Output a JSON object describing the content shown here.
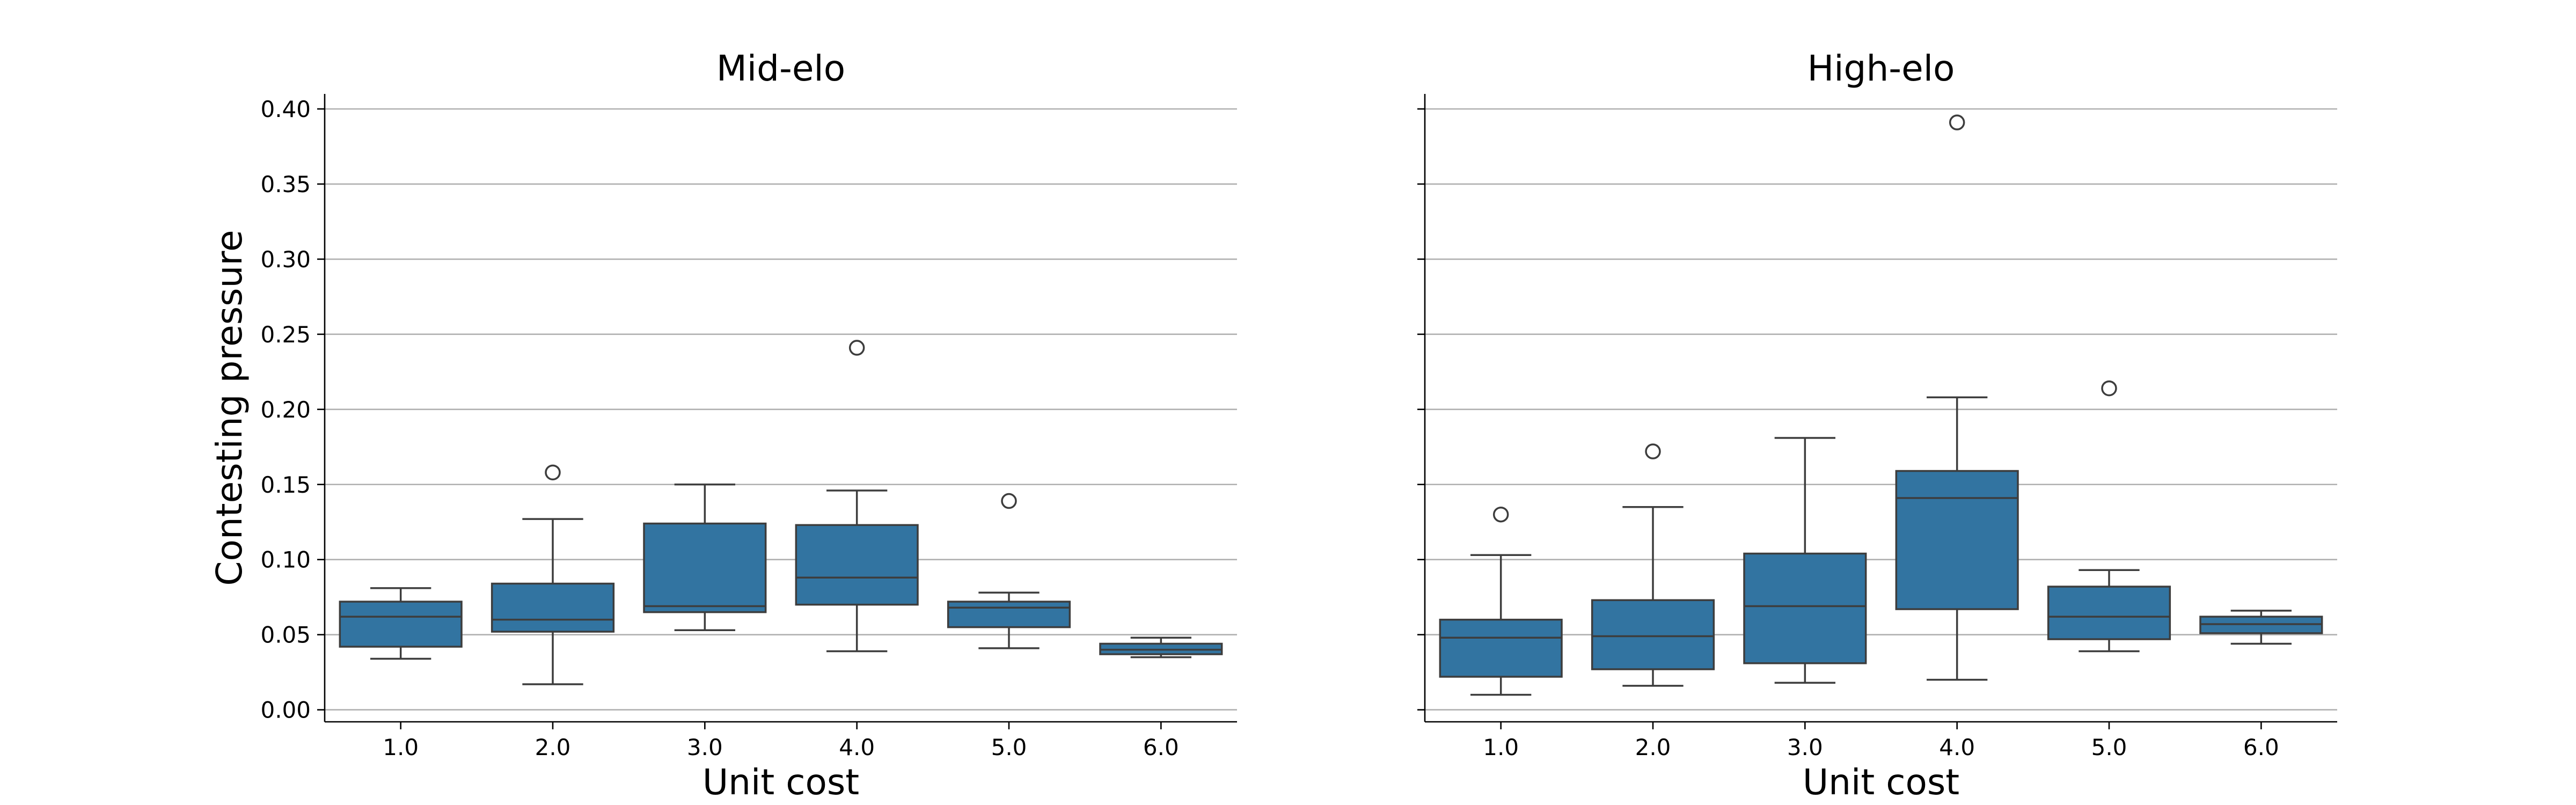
{
  "chart_data": [
    {
      "type": "box",
      "title": "Mid-elo",
      "xlabel": "Unit cost",
      "ylabel": "Contesting pressure",
      "ylim": [
        -0.008,
        0.41
      ],
      "yticks": [
        "0.00",
        "0.05",
        "0.10",
        "0.15",
        "0.20",
        "0.25",
        "0.30",
        "0.35",
        "0.40"
      ],
      "categories": [
        "1.0",
        "2.0",
        "3.0",
        "4.0",
        "5.0",
        "6.0"
      ],
      "grid": "horizontal",
      "box_color": "#3274a1",
      "boxes": [
        {
          "min": 0.034,
          "q1": 0.042,
          "median": 0.062,
          "q3": 0.072,
          "max": 0.081,
          "outliers": []
        },
        {
          "min": 0.017,
          "q1": 0.052,
          "median": 0.06,
          "q3": 0.084,
          "max": 0.127,
          "outliers": [
            0.158
          ]
        },
        {
          "min": 0.053,
          "q1": 0.065,
          "median": 0.069,
          "q3": 0.124,
          "max": 0.15,
          "outliers": []
        },
        {
          "min": 0.039,
          "q1": 0.07,
          "median": 0.088,
          "q3": 0.123,
          "max": 0.146,
          "outliers": [
            0.241
          ]
        },
        {
          "min": 0.041,
          "q1": 0.055,
          "median": 0.068,
          "q3": 0.072,
          "max": 0.078,
          "outliers": [
            0.139
          ]
        },
        {
          "min": 0.035,
          "q1": 0.037,
          "median": 0.04,
          "q3": 0.044,
          "max": 0.048,
          "outliers": []
        }
      ]
    },
    {
      "type": "box",
      "title": "High-elo",
      "xlabel": "Unit cost",
      "ylabel": "",
      "ylim": [
        -0.008,
        0.41
      ],
      "categories": [
        "1.0",
        "2.0",
        "3.0",
        "4.0",
        "5.0",
        "6.0"
      ],
      "grid": "horizontal",
      "box_color": "#3274a1",
      "boxes": [
        {
          "min": 0.01,
          "q1": 0.022,
          "median": 0.048,
          "q3": 0.06,
          "max": 0.103,
          "outliers": [
            0.13
          ]
        },
        {
          "min": 0.016,
          "q1": 0.027,
          "median": 0.049,
          "q3": 0.073,
          "max": 0.135,
          "outliers": [
            0.172
          ]
        },
        {
          "min": 0.018,
          "q1": 0.031,
          "median": 0.069,
          "q3": 0.104,
          "max": 0.181,
          "outliers": []
        },
        {
          "min": 0.02,
          "q1": 0.067,
          "median": 0.141,
          "q3": 0.159,
          "max": 0.208,
          "outliers": [
            0.391
          ]
        },
        {
          "min": 0.039,
          "q1": 0.047,
          "median": 0.062,
          "q3": 0.082,
          "max": 0.093,
          "outliers": [
            0.214
          ]
        },
        {
          "min": 0.044,
          "q1": 0.051,
          "median": 0.057,
          "q3": 0.062,
          "max": 0.066,
          "outliers": []
        }
      ]
    }
  ]
}
